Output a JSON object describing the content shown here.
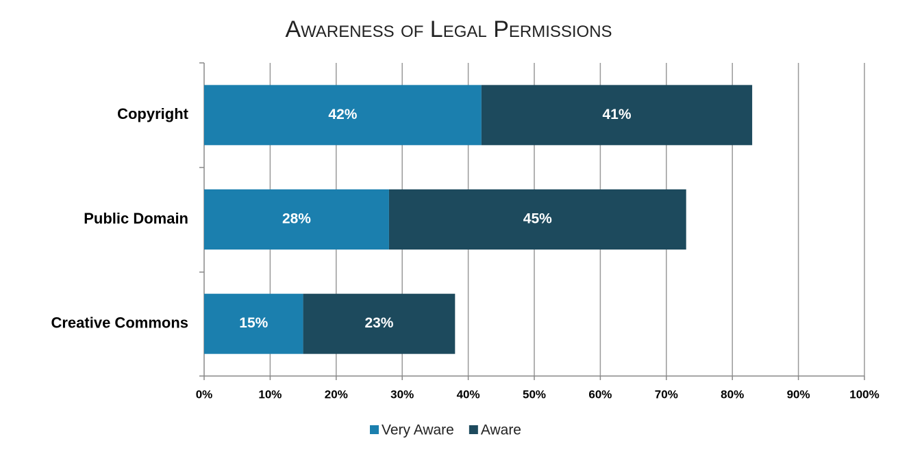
{
  "chart_data": {
    "type": "stacked-barh",
    "title": "Awareness of Legal Permissions",
    "categories": [
      "Copyright",
      "Public Domain",
      "Creative Commons"
    ],
    "series": [
      {
        "name": "Very Aware",
        "color": "#1b7fae",
        "values": [
          42,
          28,
          15
        ],
        "value_labels": [
          "42%",
          "28%",
          "15%"
        ]
      },
      {
        "name": "Aware",
        "color": "#1d4a5d",
        "values": [
          41,
          45,
          23
        ],
        "value_labels": [
          "41%",
          "45%",
          "23%"
        ]
      }
    ],
    "xlim": [
      0,
      100
    ],
    "xticks": [
      {
        "value": 0,
        "label": "0%"
      },
      {
        "value": 10,
        "label": "10%"
      },
      {
        "value": 20,
        "label": "20%"
      },
      {
        "value": 30,
        "label": "30%"
      },
      {
        "value": 40,
        "label": "40%"
      },
      {
        "value": 50,
        "label": "50%"
      },
      {
        "value": 60,
        "label": "60%"
      },
      {
        "value": 70,
        "label": "70%"
      },
      {
        "value": 80,
        "label": "80%"
      },
      {
        "value": 90,
        "label": "90%"
      },
      {
        "value": 100,
        "label": "100%"
      }
    ],
    "grid": true,
    "legend": "bottom"
  }
}
